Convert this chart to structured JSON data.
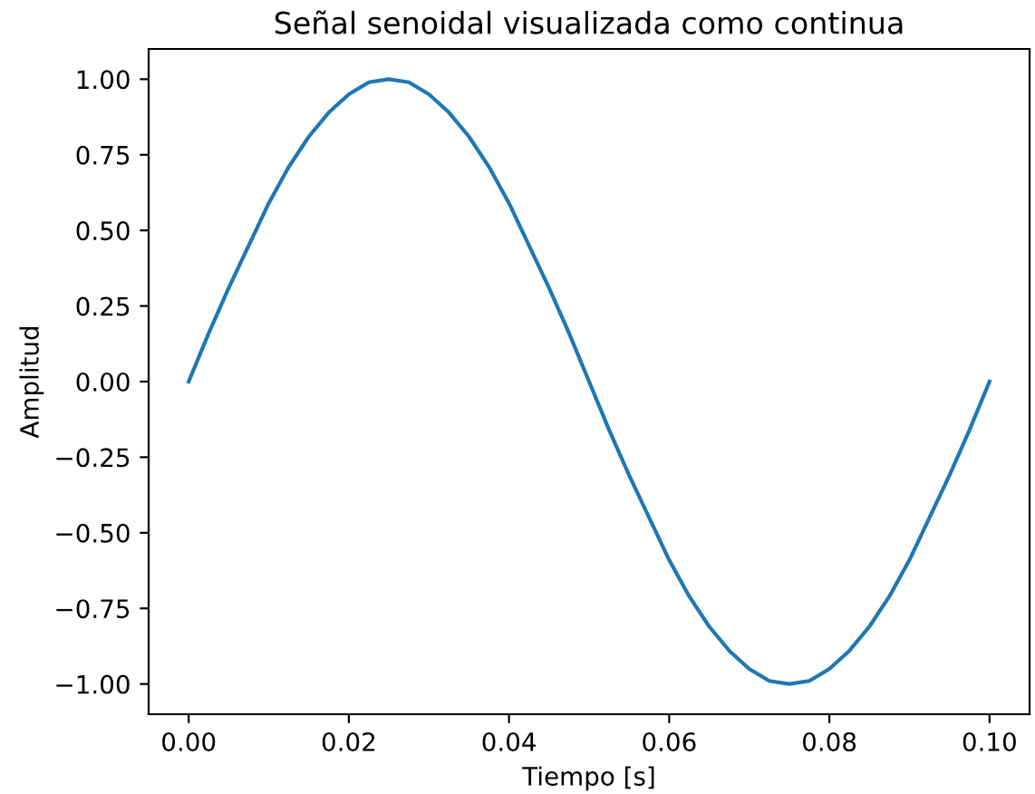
{
  "chart_data": {
    "type": "line",
    "title": "Señal senoidal visualizada como continua",
    "xlabel": "Tiempo [s]",
    "ylabel": "Amplitud",
    "x": [
      0,
      0.0025,
      0.005,
      0.0075,
      0.01,
      0.0125,
      0.015,
      0.0175,
      0.02,
      0.0225,
      0.025,
      0.0275,
      0.03,
      0.0325,
      0.035,
      0.0375,
      0.04,
      0.0425,
      0.045,
      0.0475,
      0.05,
      0.0525,
      0.055,
      0.0575,
      0.06,
      0.0625,
      0.065,
      0.0675,
      0.07,
      0.0725,
      0.075,
      0.0775,
      0.08,
      0.0825,
      0.085,
      0.0875,
      0.09,
      0.0925,
      0.095,
      0.0975,
      0.1
    ],
    "series": [
      {
        "color": "#1f77b4",
        "values": [
          0,
          0.16,
          0.31,
          0.45,
          0.59,
          0.71,
          0.81,
          0.89,
          0.95,
          0.99,
          1.0,
          0.99,
          0.95,
          0.89,
          0.81,
          0.71,
          0.59,
          0.45,
          0.31,
          0.16,
          0,
          -0.16,
          -0.31,
          -0.45,
          -0.59,
          -0.71,
          -0.81,
          -0.89,
          -0.95,
          -0.99,
          -1.0,
          -0.99,
          -0.95,
          -0.89,
          -0.81,
          -0.71,
          -0.59,
          -0.45,
          -0.31,
          -0.16,
          0
        ]
      }
    ],
    "xlim": [
      -0.005,
      0.105
    ],
    "ylim": [
      -1.1,
      1.1
    ],
    "xticks": [
      {
        "value": 0,
        "label": "0.00"
      },
      {
        "value": 0.02,
        "label": "0.02"
      },
      {
        "value": 0.04,
        "label": "0.04"
      },
      {
        "value": 0.06,
        "label": "0.06"
      },
      {
        "value": 0.08,
        "label": "0.08"
      },
      {
        "value": 0.1,
        "label": "0.10"
      }
    ],
    "yticks": [
      {
        "value": -1,
        "label": "−1.00"
      },
      {
        "value": -0.75,
        "label": "−0.75"
      },
      {
        "value": -0.5,
        "label": "−0.50"
      },
      {
        "value": -0.25,
        "label": "−0.25"
      },
      {
        "value": 0,
        "label": "0.00"
      },
      {
        "value": 0.25,
        "label": "0.25"
      },
      {
        "value": 0.5,
        "label": "0.50"
      },
      {
        "value": 0.75,
        "label": "0.75"
      },
      {
        "value": 1,
        "label": "1.00"
      }
    ],
    "grid": false,
    "legend": false,
    "marker": "none",
    "line_style": "solid"
  }
}
